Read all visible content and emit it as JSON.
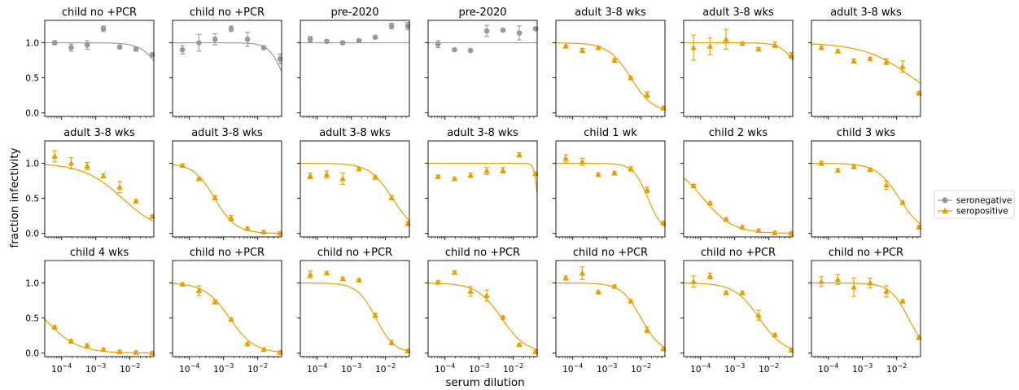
{
  "figure": {
    "ylabel": "fraction infectivity",
    "xlabel": "serum dilution",
    "legend": [
      {
        "label": "seronegative",
        "color": "#999999",
        "marker": "circle"
      },
      {
        "label": "seropositive",
        "color": "#E69F00",
        "marker": "triangle"
      }
    ],
    "legend_placement": "center-right",
    "y_tick_labels": [
      "0.0",
      "0.5",
      "1.0"
    ],
    "x_tick_labels": [
      {
        "base": "10",
        "exp": "−4"
      },
      {
        "base": "10",
        "exp": "−3"
      },
      {
        "base": "10",
        "exp": "−2"
      }
    ]
  },
  "chart_data": {
    "type": "scatter",
    "x_scale": "log",
    "xlim": [
      3.2e-05,
      0.05
    ],
    "ylim": [
      -0.05,
      1.32
    ],
    "x_dilutions": [
      6.25e-05,
      0.00019,
      0.00056,
      0.00167,
      0.005,
      0.015,
      0.045
    ],
    "panels": [
      {
        "title": "child no +PCR",
        "group": "seronegative",
        "y": [
          1.0,
          0.93,
          0.97,
          1.2,
          0.94,
          0.91,
          0.83
        ],
        "err": [
          0.03,
          0.05,
          0.06,
          0.04,
          0.02,
          0.03,
          0.02
        ],
        "fit": {
          "type": "sigmoid",
          "ic50": 0.1,
          "slope": 1.5
        }
      },
      {
        "title": "child no +PCR",
        "group": "seronegative",
        "y": [
          0.9,
          1.0,
          1.05,
          1.2,
          1.05,
          0.93,
          0.77
        ],
        "err": [
          0.06,
          0.12,
          0.08,
          0.04,
          0.1,
          0.02,
          0.07
        ],
        "fit": {
          "type": "sigmoid",
          "ic50": 0.06,
          "slope": 2.0
        }
      },
      {
        "title": "pre-2020",
        "group": "seronegative",
        "y": [
          1.05,
          1.02,
          1.0,
          1.03,
          1.08,
          1.24,
          1.24
        ],
        "err": [
          0.04,
          0.02,
          0.02,
          0.02,
          0.02,
          0.04,
          0.05
        ],
        "fit": {
          "type": "flat",
          "value": 1.0
        }
      },
      {
        "title": "pre-2020",
        "group": "seronegative",
        "y": [
          0.98,
          0.9,
          0.89,
          1.17,
          1.18,
          1.14,
          1.2
        ],
        "err": [
          0.05,
          0.02,
          0.02,
          0.08,
          0.02,
          0.1,
          0.02
        ],
        "fit": {
          "type": "flat",
          "value": 1.0
        }
      },
      {
        "title": "adult 3-8 wks",
        "group": "seropositive",
        "y": [
          0.95,
          0.89,
          0.93,
          0.75,
          0.5,
          0.26,
          0.07
        ],
        "err": [
          0.02,
          0.03,
          0.02,
          0.02,
          0.02,
          0.04,
          0.02
        ],
        "fit": {
          "type": "sigmoid",
          "ic50": 0.005,
          "slope": 1.3
        }
      },
      {
        "title": "adult 3-8 wks",
        "group": "seropositive",
        "y": [
          0.93,
          0.95,
          1.05,
          0.99,
          0.91,
          0.97,
          0.82
        ],
        "err": [
          0.18,
          0.12,
          0.14,
          0.02,
          0.02,
          0.04,
          0.04
        ],
        "fit": {
          "type": "sigmoid",
          "ic50": 0.09,
          "slope": 1.8
        }
      },
      {
        "title": "adult 3-8 wks",
        "group": "seropositive",
        "y": [
          0.93,
          0.88,
          0.74,
          0.77,
          0.73,
          0.66,
          0.28
        ],
        "err": [
          0.02,
          0.02,
          0.03,
          0.02,
          0.04,
          0.08,
          0.02
        ],
        "fit": {
          "type": "sigmoid",
          "ic50": 0.03,
          "slope": 0.6
        }
      },
      {
        "title": "adult 3-8 wks",
        "group": "seropositive",
        "y": [
          1.1,
          1.0,
          0.96,
          0.82,
          0.66,
          0.46,
          0.24
        ],
        "err": [
          0.08,
          0.08,
          0.05,
          0.03,
          0.08,
          0.02,
          0.02
        ],
        "fit": {
          "type": "sigmoid",
          "ic50": 0.006,
          "slope": 0.75
        }
      },
      {
        "title": "adult 3-8 wks",
        "group": "seropositive",
        "y": [
          0.97,
          0.78,
          0.51,
          0.22,
          0.07,
          0.02,
          0.0
        ],
        "err": [
          0.02,
          0.02,
          0.03,
          0.04,
          0.02,
          0.02,
          0.02
        ],
        "fit": {
          "type": "sigmoid",
          "ic50": 0.00055,
          "slope": 1.4
        }
      },
      {
        "title": "adult 3-8 wks",
        "group": "seropositive",
        "y": [
          0.82,
          0.84,
          0.78,
          0.92,
          0.8,
          0.51,
          0.14
        ],
        "err": [
          0.04,
          0.05,
          0.08,
          0.02,
          0.02,
          0.03,
          0.03
        ],
        "fit": {
          "type": "sigmoid",
          "ic50": 0.016,
          "slope": 1.3
        }
      },
      {
        "title": "adult 3-8 wks",
        "group": "seropositive",
        "y": [
          0.81,
          0.78,
          0.83,
          0.89,
          0.9,
          1.12,
          0.85
        ],
        "err": [
          0.02,
          0.02,
          0.03,
          0.05,
          0.04,
          0.03,
          0.02
        ],
        "fit": {
          "type": "sigmoid",
          "ic50": 0.052,
          "slope": 8.0
        }
      },
      {
        "title": "child 1 wk",
        "group": "seropositive",
        "y": [
          1.07,
          1.02,
          0.84,
          0.86,
          0.92,
          0.62,
          0.15
        ],
        "err": [
          0.05,
          0.05,
          0.02,
          0.02,
          0.03,
          0.04,
          0.02
        ],
        "fit": {
          "type": "sigmoid",
          "ic50": 0.016,
          "slope": 2.0
        }
      },
      {
        "title": "child 2 wks",
        "group": "seropositive",
        "y": [
          0.68,
          0.43,
          0.2,
          0.09,
          0.04,
          0.01,
          0.0
        ],
        "err": [
          0.02,
          0.02,
          0.02,
          0.02,
          0.02,
          0.02,
          0.02
        ],
        "fit": {
          "type": "sigmoid",
          "ic50": 0.00012,
          "slope": 1.0
        }
      },
      {
        "title": "child 3 wks",
        "group": "seropositive",
        "y": [
          1.0,
          0.9,
          0.95,
          0.91,
          0.69,
          0.44,
          0.09
        ],
        "err": [
          0.03,
          0.02,
          0.02,
          0.02,
          0.06,
          0.02,
          0.02
        ],
        "fit": {
          "type": "sigmoid",
          "ic50": 0.012,
          "slope": 1.3
        }
      },
      {
        "title": "child 4 wks",
        "group": "seropositive",
        "y": [
          0.37,
          0.17,
          0.11,
          0.05,
          0.02,
          0.01,
          0.0
        ],
        "err": [
          0.02,
          0.02,
          0.02,
          0.02,
          0.02,
          0.02,
          0.02
        ],
        "fit": {
          "type": "sigmoid",
          "ic50": 3e-05,
          "slope": 0.9
        }
      },
      {
        "title": "child no +PCR",
        "group": "seropositive",
        "y": [
          0.98,
          0.89,
          0.73,
          0.48,
          0.13,
          0.05,
          0.01
        ],
        "err": [
          0.02,
          0.07,
          0.03,
          0.02,
          0.02,
          0.02,
          0.02
        ],
        "fit": {
          "type": "sigmoid",
          "ic50": 0.0015,
          "slope": 1.2
        }
      },
      {
        "title": "child no +PCR",
        "group": "seropositive",
        "y": [
          1.12,
          1.14,
          1.06,
          1.04,
          0.54,
          0.15,
          0.03
        ],
        "err": [
          0.05,
          0.02,
          0.02,
          0.02,
          0.03,
          0.03,
          0.02
        ],
        "fit": {
          "type": "sigmoid",
          "ic50": 0.0052,
          "slope": 1.6
        }
      },
      {
        "title": "child no +PCR",
        "group": "seropositive",
        "y": [
          1.01,
          1.15,
          0.88,
          0.82,
          0.51,
          0.12,
          0.02
        ],
        "err": [
          0.02,
          0.02,
          0.07,
          0.08,
          0.02,
          0.02,
          0.02
        ],
        "fit": {
          "type": "sigmoid",
          "ic50": 0.0045,
          "slope": 1.2
        }
      },
      {
        "title": "child no +PCR",
        "group": "seropositive",
        "y": [
          1.07,
          1.14,
          0.87,
          0.95,
          0.74,
          0.33,
          0.06
        ],
        "err": [
          0.03,
          0.09,
          0.02,
          0.02,
          0.02,
          0.04,
          0.02
        ],
        "fit": {
          "type": "sigmoid",
          "ic50": 0.01,
          "slope": 1.5
        }
      },
      {
        "title": "child no +PCR",
        "group": "seropositive",
        "y": [
          1.02,
          1.1,
          0.86,
          0.86,
          0.54,
          0.26,
          0.04
        ],
        "err": [
          0.08,
          0.04,
          0.02,
          0.02,
          0.07,
          0.02,
          0.02
        ],
        "fit": {
          "type": "sigmoid",
          "ic50": 0.0052,
          "slope": 1.2
        }
      },
      {
        "title": "child no +PCR",
        "group": "seropositive",
        "y": [
          1.02,
          1.05,
          0.94,
          1.0,
          0.88,
          0.74,
          0.22
        ],
        "err": [
          0.07,
          0.07,
          0.13,
          0.07,
          0.08,
          0.02,
          0.02
        ],
        "fit": {
          "type": "sigmoid",
          "ic50": 0.022,
          "slope": 1.6
        }
      }
    ]
  }
}
